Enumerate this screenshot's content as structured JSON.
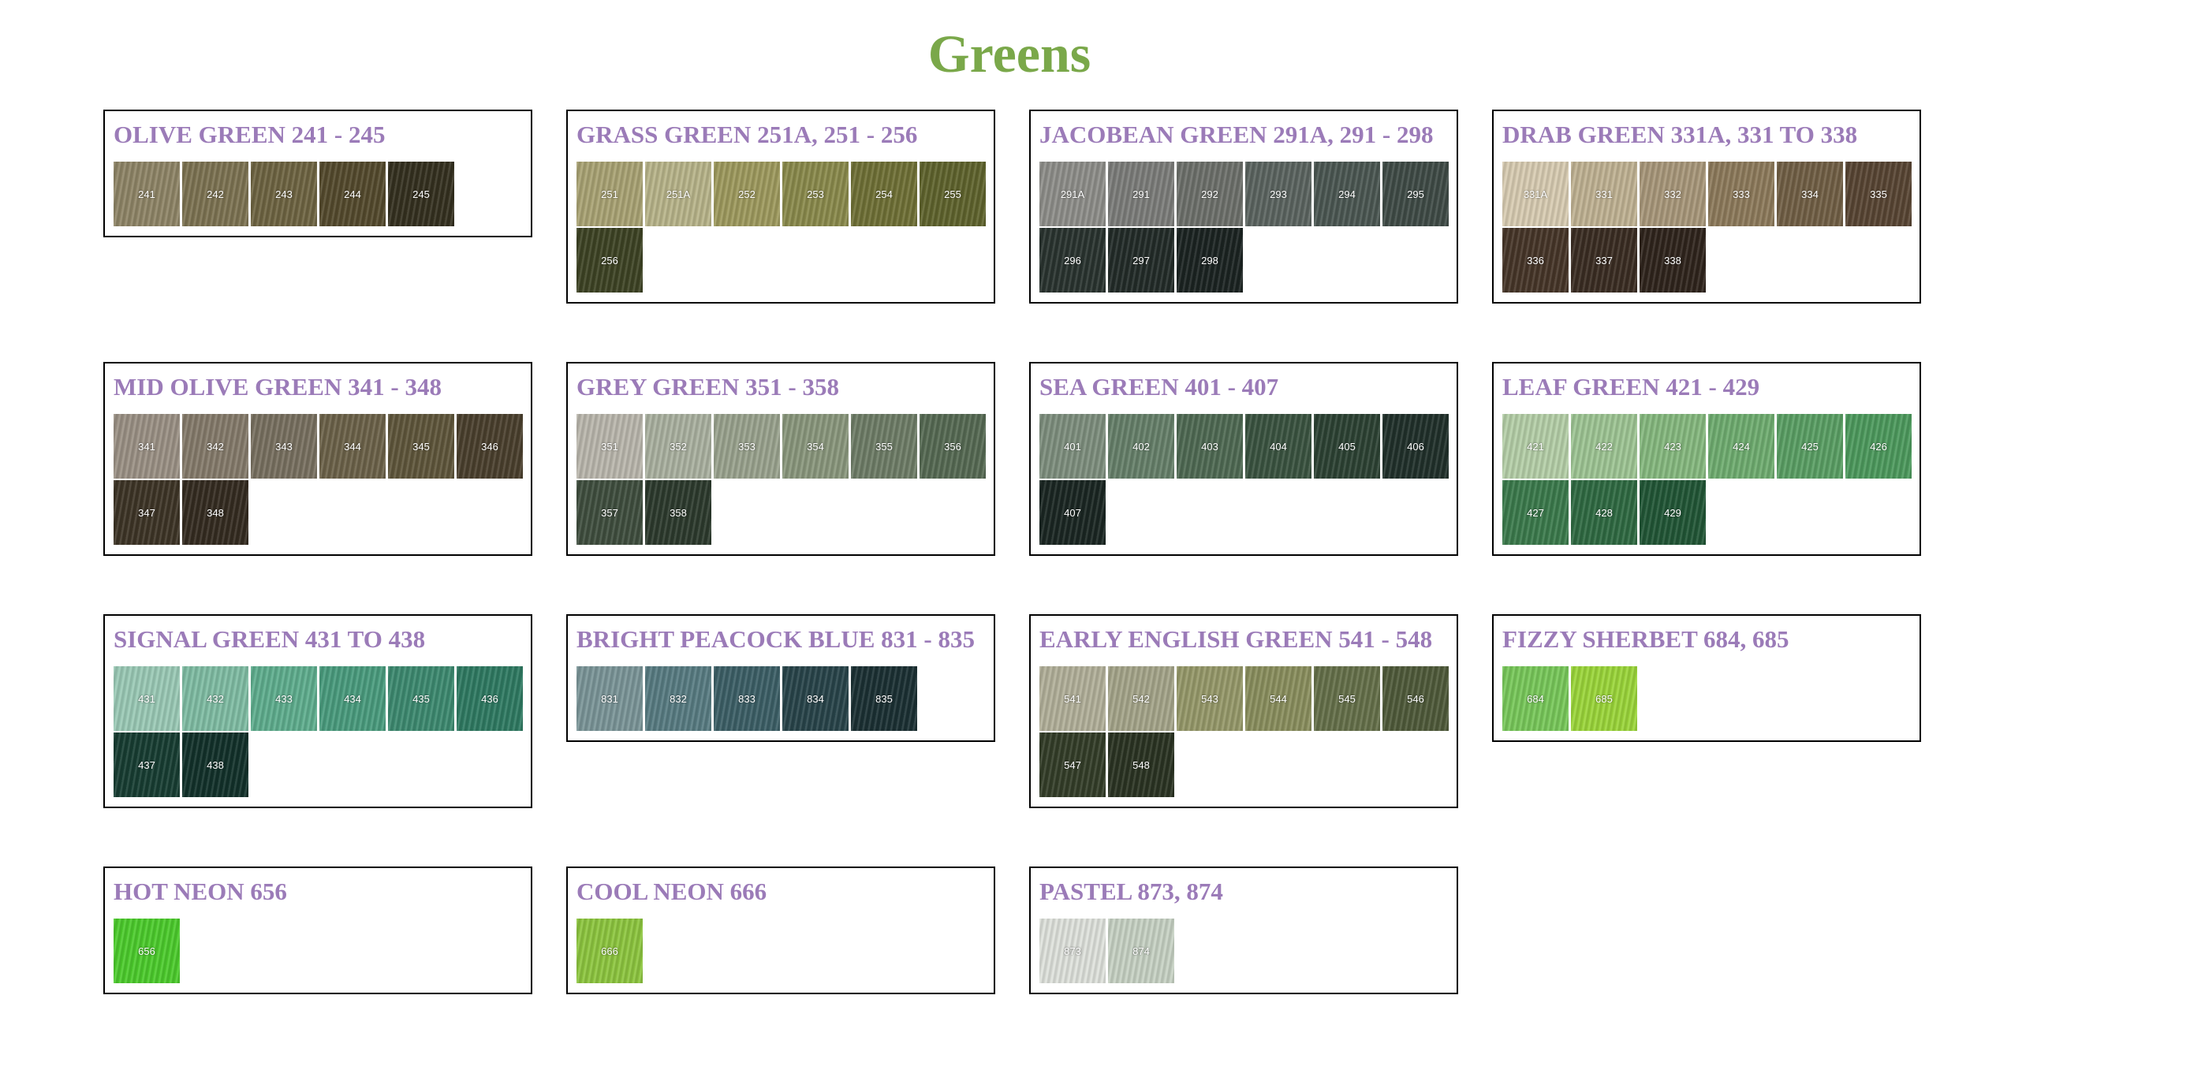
{
  "page": {
    "title": "Greens"
  },
  "groups": [
    {
      "title": "OLIVE GREEN 241 - 245",
      "swatches": [
        {
          "code": "241",
          "color": "#8f8567"
        },
        {
          "code": "242",
          "color": "#7d7352"
        },
        {
          "code": "243",
          "color": "#6e6442"
        },
        {
          "code": "244",
          "color": "#544a2d"
        },
        {
          "code": "245",
          "color": "#34301f"
        }
      ]
    },
    {
      "title": "GRASS GREEN 251A, 251 - 256",
      "swatches": [
        {
          "code": "251",
          "color": "#a9a374"
        },
        {
          "code": "251A",
          "color": "#b8b48a"
        },
        {
          "code": "252",
          "color": "#9e9a5e"
        },
        {
          "code": "253",
          "color": "#8a8a4c"
        },
        {
          "code": "254",
          "color": "#6f7036"
        },
        {
          "code": "255",
          "color": "#5f632d"
        },
        {
          "code": "256",
          "color": "#3d4324"
        }
      ]
    },
    {
      "title": "JACOBEAN GREEN 291A, 291 - 298",
      "swatches": [
        {
          "code": "291A",
          "color": "#8e8e8a"
        },
        {
          "code": "291",
          "color": "#7c7d7a"
        },
        {
          "code": "292",
          "color": "#6d706b"
        },
        {
          "code": "293",
          "color": "#5b6460"
        },
        {
          "code": "294",
          "color": "#4b5752"
        },
        {
          "code": "295",
          "color": "#3f4b46"
        },
        {
          "code": "296",
          "color": "#29332f"
        },
        {
          "code": "297",
          "color": "#222b28"
        },
        {
          "code": "298",
          "color": "#1b2321"
        }
      ]
    },
    {
      "title": "DRAB GREEN 331A, 331 TO 338",
      "swatches": [
        {
          "code": "331A",
          "color": "#d8ccb2"
        },
        {
          "code": "331",
          "color": "#c0b293"
        },
        {
          "code": "332",
          "color": "#a8977a"
        },
        {
          "code": "333",
          "color": "#8d7a5b"
        },
        {
          "code": "334",
          "color": "#715f45"
        },
        {
          "code": "335",
          "color": "#584533"
        },
        {
          "code": "336",
          "color": "#463528"
        },
        {
          "code": "337",
          "color": "#3a2c22"
        },
        {
          "code": "338",
          "color": "#2f241c"
        }
      ]
    },
    {
      "title": "MID OLIVE GREEN 341 - 348",
      "swatches": [
        {
          "code": "341",
          "color": "#9b9185"
        },
        {
          "code": "342",
          "color": "#857b6b"
        },
        {
          "code": "343",
          "color": "#787060"
        },
        {
          "code": "344",
          "color": "#6c6249"
        },
        {
          "code": "345",
          "color": "#5f563b"
        },
        {
          "code": "346",
          "color": "#4a3f2d"
        },
        {
          "code": "347",
          "color": "#3d3426"
        },
        {
          "code": "348",
          "color": "#342b20"
        }
      ]
    },
    {
      "title": "GREY GREEN 351 - 358",
      "swatches": [
        {
          "code": "351",
          "color": "#bab7ad"
        },
        {
          "code": "352",
          "color": "#aab1a0"
        },
        {
          "code": "353",
          "color": "#9aa38e"
        },
        {
          "code": "354",
          "color": "#8a977d"
        },
        {
          "code": "355",
          "color": "#6e7d67"
        },
        {
          "code": "356",
          "color": "#566a53"
        },
        {
          "code": "357",
          "color": "#3f4e3e"
        },
        {
          "code": "358",
          "color": "#2c3a2d"
        }
      ]
    },
    {
      "title": "SEA GREEN 401 - 407",
      "swatches": [
        {
          "code": "401",
          "color": "#7e8f7e"
        },
        {
          "code": "402",
          "color": "#66806a"
        },
        {
          "code": "403",
          "color": "#4f6a53"
        },
        {
          "code": "404",
          "color": "#3a5340"
        },
        {
          "code": "405",
          "color": "#2c4233"
        },
        {
          "code": "406",
          "color": "#20302a"
        },
        {
          "code": "407",
          "color": "#1a2622"
        }
      ]
    },
    {
      "title": "LEAF GREEN 421 - 429",
      "swatches": [
        {
          "code": "421",
          "color": "#b5cfa8"
        },
        {
          "code": "422",
          "color": "#9ec594"
        },
        {
          "code": "423",
          "color": "#86b97f"
        },
        {
          "code": "424",
          "color": "#6fad70"
        },
        {
          "code": "425",
          "color": "#5a9f64"
        },
        {
          "code": "426",
          "color": "#4d9a5d"
        },
        {
          "code": "427",
          "color": "#3b7a4c"
        },
        {
          "code": "428",
          "color": "#2f6a42"
        },
        {
          "code": "429",
          "color": "#215636"
        }
      ]
    },
    {
      "title": "SIGNAL GREEN 431 TO 438",
      "swatches": [
        {
          "code": "431",
          "color": "#9bcab6"
        },
        {
          "code": "432",
          "color": "#80bda4"
        },
        {
          "code": "433",
          "color": "#5fae8e"
        },
        {
          "code": "434",
          "color": "#4a9c7e"
        },
        {
          "code": "435",
          "color": "#3d8a70"
        },
        {
          "code": "436",
          "color": "#2f7a62"
        },
        {
          "code": "437",
          "color": "#173d32"
        },
        {
          "code": "438",
          "color": "#12312a"
        }
      ]
    },
    {
      "title": "BRIGHT PEACOCK BLUE 831 - 835",
      "swatches": [
        {
          "code": "831",
          "color": "#7b9598"
        },
        {
          "code": "832",
          "color": "#587c82"
        },
        {
          "code": "833",
          "color": "#3c5f66"
        },
        {
          "code": "834",
          "color": "#28444a"
        },
        {
          "code": "835",
          "color": "#1b3033"
        }
      ]
    },
    {
      "title": "EARLY ENGLISH GREEN 541 - 548",
      "swatches": [
        {
          "code": "541",
          "color": "#b2b09a"
        },
        {
          "code": "542",
          "color": "#a5a58a"
        },
        {
          "code": "543",
          "color": "#96996a"
        },
        {
          "code": "544",
          "color": "#8a8f5e"
        },
        {
          "code": "545",
          "color": "#65704a"
        },
        {
          "code": "546",
          "color": "#4f5a3a"
        },
        {
          "code": "547",
          "color": "#333d28"
        },
        {
          "code": "548",
          "color": "#2a3322"
        }
      ]
    },
    {
      "title": "FIZZY SHERBET 684, 685",
      "swatches": [
        {
          "code": "684",
          "color": "#78c85a"
        },
        {
          "code": "685",
          "color": "#9bd63a"
        }
      ]
    },
    {
      "title": "HOT NEON 656",
      "swatches": [
        {
          "code": "656",
          "color": "#4ccc2c"
        }
      ]
    },
    {
      "title": "COOL NEON 666",
      "swatches": [
        {
          "code": "666",
          "color": "#8dc63f"
        }
      ]
    },
    {
      "title": "PASTEL 873, 874",
      "swatches": [
        {
          "code": "873",
          "color": "#dfe2dc"
        },
        {
          "code": "874",
          "color": "#c7d2c4"
        }
      ]
    }
  ]
}
